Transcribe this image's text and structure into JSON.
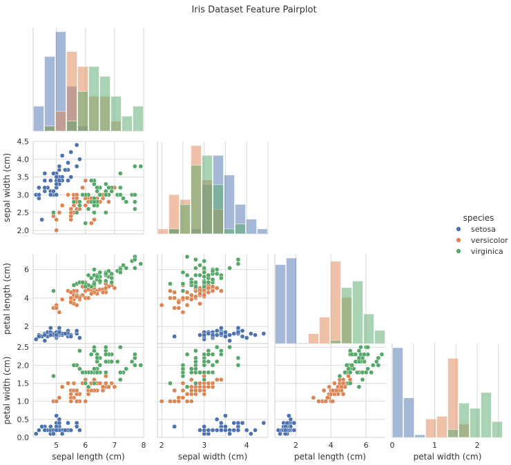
{
  "figure": {
    "title": "Iris Dataset Feature Pairplot"
  },
  "chart_data": {
    "type": "scatter",
    "subtype": "pairplot-corner",
    "title": "Iris Dataset Feature Pairplot",
    "variables": [
      "sepal length (cm)",
      "sepal width (cm)",
      "petal length (cm)",
      "petal width (cm)"
    ],
    "ranges": [
      [
        4.2,
        8.0
      ],
      [
        1.9,
        4.5
      ],
      [
        0.8,
        7.1
      ],
      [
        0.0,
        2.6
      ]
    ],
    "ticks": [
      [
        5,
        6,
        7,
        8
      ],
      [
        2.0,
        2.5,
        3.0,
        3.5,
        4.0,
        4.5
      ],
      [
        2,
        4,
        6
      ],
      [
        0.0,
        0.5,
        1.0,
        1.5,
        2.0,
        2.5
      ]
    ],
    "bottom_ticks": [
      [
        5,
        6,
        7,
        8
      ],
      [
        2,
        3,
        4
      ],
      [
        2,
        4,
        6
      ],
      [
        0,
        1,
        2
      ]
    ],
    "grid": true,
    "legend": {
      "title": "species",
      "position": "right",
      "entries": [
        "setosa",
        "versicolor",
        "virginica"
      ]
    },
    "colors": {
      "setosa": "#4c72b0",
      "versicolor": "#dd8452",
      "virginica": "#55a868"
    },
    "series": [
      {
        "name": "setosa",
        "color": "#4c72b0",
        "points": [
          [
            5.1,
            3.5,
            1.4,
            0.2
          ],
          [
            4.9,
            3.0,
            1.4,
            0.2
          ],
          [
            4.7,
            3.2,
            1.3,
            0.2
          ],
          [
            4.6,
            3.1,
            1.5,
            0.2
          ],
          [
            5.0,
            3.6,
            1.4,
            0.2
          ],
          [
            5.4,
            3.9,
            1.7,
            0.4
          ],
          [
            4.6,
            3.4,
            1.4,
            0.3
          ],
          [
            5.0,
            3.4,
            1.5,
            0.2
          ],
          [
            4.4,
            2.9,
            1.4,
            0.2
          ],
          [
            4.9,
            3.1,
            1.5,
            0.1
          ],
          [
            5.4,
            3.7,
            1.5,
            0.2
          ],
          [
            4.8,
            3.4,
            1.6,
            0.2
          ],
          [
            4.8,
            3.0,
            1.4,
            0.1
          ],
          [
            4.3,
            3.0,
            1.1,
            0.1
          ],
          [
            5.8,
            4.0,
            1.2,
            0.2
          ],
          [
            5.7,
            4.4,
            1.5,
            0.4
          ],
          [
            5.4,
            3.9,
            1.3,
            0.4
          ],
          [
            5.1,
            3.5,
            1.4,
            0.3
          ],
          [
            5.7,
            3.8,
            1.7,
            0.3
          ],
          [
            5.1,
            3.8,
            1.5,
            0.3
          ],
          [
            5.4,
            3.4,
            1.7,
            0.2
          ],
          [
            5.1,
            3.7,
            1.5,
            0.4
          ],
          [
            4.6,
            3.6,
            1.0,
            0.2
          ],
          [
            5.1,
            3.3,
            1.7,
            0.5
          ],
          [
            4.8,
            3.4,
            1.9,
            0.2
          ],
          [
            5.0,
            3.0,
            1.6,
            0.2
          ],
          [
            5.0,
            3.4,
            1.6,
            0.4
          ],
          [
            5.2,
            3.5,
            1.5,
            0.2
          ],
          [
            5.2,
            3.4,
            1.4,
            0.2
          ],
          [
            4.7,
            3.2,
            1.6,
            0.2
          ],
          [
            4.8,
            3.1,
            1.6,
            0.2
          ],
          [
            5.4,
            3.4,
            1.5,
            0.4
          ],
          [
            5.2,
            4.1,
            1.5,
            0.1
          ],
          [
            5.5,
            4.2,
            1.4,
            0.2
          ],
          [
            4.9,
            3.1,
            1.5,
            0.2
          ],
          [
            5.0,
            3.2,
            1.2,
            0.2
          ],
          [
            5.5,
            3.5,
            1.3,
            0.2
          ],
          [
            4.9,
            3.6,
            1.4,
            0.1
          ],
          [
            4.4,
            3.0,
            1.3,
            0.2
          ],
          [
            5.1,
            3.4,
            1.5,
            0.2
          ],
          [
            5.0,
            3.5,
            1.3,
            0.3
          ],
          [
            4.5,
            2.3,
            1.3,
            0.3
          ],
          [
            4.4,
            3.2,
            1.3,
            0.2
          ],
          [
            5.0,
            3.5,
            1.6,
            0.6
          ],
          [
            5.1,
            3.8,
            1.9,
            0.4
          ],
          [
            4.8,
            3.0,
            1.4,
            0.3
          ],
          [
            5.1,
            3.8,
            1.6,
            0.2
          ],
          [
            4.6,
            3.2,
            1.4,
            0.2
          ],
          [
            5.3,
            3.7,
            1.5,
            0.2
          ],
          [
            5.0,
            3.3,
            1.4,
            0.2
          ]
        ]
      },
      {
        "name": "versicolor",
        "color": "#dd8452",
        "points": [
          [
            7.0,
            3.2,
            4.7,
            1.4
          ],
          [
            6.4,
            3.2,
            4.5,
            1.5
          ],
          [
            6.9,
            3.1,
            4.9,
            1.5
          ],
          [
            5.5,
            2.3,
            4.0,
            1.3
          ],
          [
            6.5,
            2.8,
            4.6,
            1.5
          ],
          [
            5.7,
            2.8,
            4.5,
            1.3
          ],
          [
            6.3,
            3.3,
            4.7,
            1.6
          ],
          [
            4.9,
            2.4,
            3.3,
            1.0
          ],
          [
            6.6,
            2.9,
            4.6,
            1.3
          ],
          [
            5.2,
            2.7,
            3.9,
            1.4
          ],
          [
            5.0,
            2.0,
            3.5,
            1.0
          ],
          [
            5.9,
            3.0,
            4.2,
            1.5
          ],
          [
            6.0,
            2.2,
            4.0,
            1.0
          ],
          [
            6.1,
            2.9,
            4.7,
            1.4
          ],
          [
            5.6,
            2.9,
            3.6,
            1.3
          ],
          [
            6.7,
            3.1,
            4.4,
            1.4
          ],
          [
            5.6,
            3.0,
            4.5,
            1.5
          ],
          [
            5.8,
            2.7,
            4.1,
            1.0
          ],
          [
            6.2,
            2.2,
            4.5,
            1.5
          ],
          [
            5.6,
            2.5,
            3.9,
            1.1
          ],
          [
            5.9,
            3.2,
            4.8,
            1.8
          ],
          [
            6.1,
            2.8,
            4.0,
            1.3
          ],
          [
            6.3,
            2.5,
            4.9,
            1.5
          ],
          [
            6.1,
            2.8,
            4.7,
            1.2
          ],
          [
            6.4,
            2.9,
            4.3,
            1.3
          ],
          [
            6.6,
            3.0,
            4.4,
            1.4
          ],
          [
            6.8,
            2.8,
            4.8,
            1.4
          ],
          [
            6.7,
            3.0,
            5.0,
            1.7
          ],
          [
            6.0,
            2.9,
            4.5,
            1.5
          ],
          [
            5.7,
            2.6,
            3.5,
            1.0
          ],
          [
            5.5,
            2.4,
            3.8,
            1.1
          ],
          [
            5.5,
            2.4,
            3.7,
            1.0
          ],
          [
            5.8,
            2.7,
            3.9,
            1.2
          ],
          [
            6.0,
            2.7,
            5.1,
            1.6
          ],
          [
            5.4,
            3.0,
            4.5,
            1.5
          ],
          [
            6.0,
            3.4,
            4.5,
            1.6
          ],
          [
            6.7,
            3.1,
            4.7,
            1.5
          ],
          [
            6.3,
            2.3,
            4.4,
            1.3
          ],
          [
            5.6,
            3.0,
            4.1,
            1.3
          ],
          [
            5.5,
            2.5,
            4.0,
            1.3
          ],
          [
            5.5,
            2.6,
            4.4,
            1.2
          ],
          [
            6.1,
            3.0,
            4.6,
            1.4
          ],
          [
            5.8,
            2.6,
            4.0,
            1.2
          ],
          [
            5.0,
            2.3,
            3.3,
            1.0
          ],
          [
            5.6,
            2.7,
            4.2,
            1.3
          ],
          [
            5.7,
            3.0,
            4.2,
            1.2
          ],
          [
            5.7,
            2.9,
            4.2,
            1.3
          ],
          [
            6.2,
            2.9,
            4.3,
            1.3
          ],
          [
            5.1,
            2.5,
            3.0,
            1.1
          ],
          [
            5.7,
            2.8,
            4.1,
            1.3
          ]
        ]
      },
      {
        "name": "virginica",
        "color": "#55a868",
        "points": [
          [
            6.3,
            3.3,
            6.0,
            2.5
          ],
          [
            5.8,
            2.7,
            5.1,
            1.9
          ],
          [
            7.1,
            3.0,
            5.9,
            2.1
          ],
          [
            6.3,
            2.9,
            5.6,
            1.8
          ],
          [
            6.5,
            3.0,
            5.8,
            2.2
          ],
          [
            7.6,
            3.0,
            6.6,
            2.1
          ],
          [
            4.9,
            2.5,
            4.5,
            1.7
          ],
          [
            7.3,
            2.9,
            6.3,
            1.8
          ],
          [
            6.7,
            2.5,
            5.8,
            1.8
          ],
          [
            7.2,
            3.6,
            6.1,
            2.5
          ],
          [
            6.5,
            3.2,
            5.1,
            2.0
          ],
          [
            6.4,
            2.7,
            5.3,
            1.9
          ],
          [
            6.8,
            3.0,
            5.5,
            2.1
          ],
          [
            5.7,
            2.5,
            5.0,
            2.0
          ],
          [
            5.8,
            2.8,
            5.1,
            2.4
          ],
          [
            6.4,
            3.2,
            5.3,
            2.3
          ],
          [
            6.5,
            3.0,
            5.5,
            1.8
          ],
          [
            7.7,
            3.8,
            6.7,
            2.2
          ],
          [
            7.7,
            2.6,
            6.9,
            2.3
          ],
          [
            6.0,
            2.2,
            5.0,
            1.5
          ],
          [
            6.9,
            3.2,
            5.7,
            2.3
          ],
          [
            5.6,
            2.8,
            4.9,
            2.0
          ],
          [
            7.7,
            2.8,
            6.7,
            2.0
          ],
          [
            6.3,
            2.7,
            4.9,
            1.8
          ],
          [
            6.7,
            3.3,
            5.7,
            2.1
          ],
          [
            7.2,
            3.2,
            6.0,
            1.8
          ],
          [
            6.2,
            2.8,
            4.8,
            1.8
          ],
          [
            6.1,
            3.0,
            4.9,
            1.8
          ],
          [
            6.4,
            2.8,
            5.6,
            2.1
          ],
          [
            7.2,
            3.0,
            5.8,
            1.6
          ],
          [
            7.4,
            2.8,
            6.1,
            1.9
          ],
          [
            7.9,
            3.8,
            6.4,
            2.0
          ],
          [
            6.4,
            2.8,
            5.6,
            2.2
          ],
          [
            6.3,
            2.8,
            5.1,
            1.5
          ],
          [
            6.1,
            2.6,
            5.6,
            1.4
          ],
          [
            7.7,
            3.0,
            6.1,
            2.3
          ],
          [
            6.3,
            3.4,
            5.6,
            2.4
          ],
          [
            6.4,
            3.1,
            5.5,
            1.8
          ],
          [
            6.0,
            3.0,
            4.8,
            1.8
          ],
          [
            6.9,
            3.1,
            5.4,
            2.1
          ],
          [
            6.7,
            3.1,
            5.6,
            2.4
          ],
          [
            6.9,
            3.1,
            5.1,
            2.3
          ],
          [
            5.8,
            2.7,
            5.1,
            1.9
          ],
          [
            6.8,
            3.2,
            5.9,
            2.3
          ],
          [
            6.7,
            3.3,
            5.7,
            2.5
          ],
          [
            6.7,
            3.0,
            5.2,
            2.3
          ],
          [
            6.3,
            2.5,
            5.0,
            1.9
          ],
          [
            6.5,
            3.0,
            5.2,
            2.0
          ],
          [
            6.2,
            3.4,
            5.4,
            2.3
          ],
          [
            5.9,
            3.0,
            5.1,
            1.8
          ]
        ]
      }
    ]
  }
}
